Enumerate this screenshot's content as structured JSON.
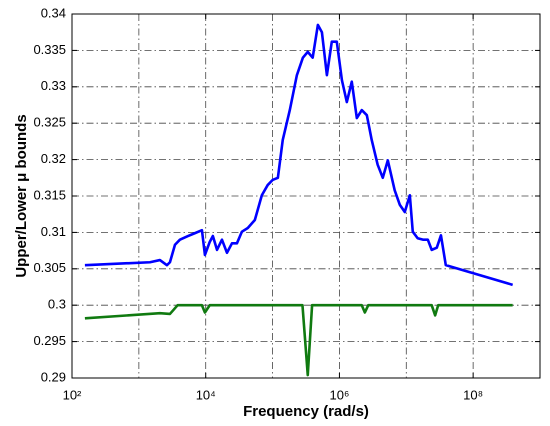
{
  "chart_data": {
    "type": "line",
    "xlabel": "Frequency (rad/s)",
    "ylabel": "Upper/Lower μ bounds",
    "xscale": "log",
    "xlim": [
      100,
      1000000000
    ],
    "xticks": [
      {
        "value": 100,
        "label": "10²"
      },
      {
        "value": 10000,
        "label": "10⁴"
      },
      {
        "value": 1000000,
        "label": "10⁶"
      },
      {
        "value": 100000000,
        "label": "10⁸"
      }
    ],
    "ylim": [
      0.29,
      0.34
    ],
    "yticks": [
      0.29,
      0.295,
      0.3,
      0.305,
      0.31,
      0.315,
      0.32,
      0.325,
      0.33,
      0.335,
      0.34
    ],
    "grid": true,
    "series": [
      {
        "color": "#0000ff",
        "x": [
          156,
          1466,
          2065,
          2630,
          2917,
          3470,
          4110,
          5420,
          6920,
          8780,
          9730,
          11500,
          12800,
          14760,
          17500,
          20800,
          24700,
          29300,
          34800,
          42600,
          54300,
          69100,
          84500,
          100000,
          120000,
          142000,
          181000,
          231000,
          284000,
          336000,
          398000,
          476000,
          547000,
          649000,
          769000,
          913000,
          1090000,
          1290000,
          1530000,
          1820000,
          2160000,
          2570000,
          3040000,
          3730000,
          4450000,
          5290000,
          6700000,
          7990000,
          9490000,
          11300000,
          12500000,
          14800000,
          17700000,
          21000000,
          24000000,
          28600000,
          33000000,
          39000000,
          390000000
        ],
        "values": [
          0.3055,
          0.3059,
          0.3062,
          0.3055,
          0.3059,
          0.3083,
          0.309,
          0.3095,
          0.3099,
          0.3103,
          0.3069,
          0.3087,
          0.3095,
          0.3076,
          0.309,
          0.3072,
          0.3085,
          0.3085,
          0.3101,
          0.3106,
          0.3117,
          0.3151,
          0.3165,
          0.3172,
          0.3175,
          0.3227,
          0.3268,
          0.3316,
          0.334,
          0.3348,
          0.334,
          0.3385,
          0.3375,
          0.3316,
          0.3362,
          0.3362,
          0.3309,
          0.3279,
          0.3307,
          0.3257,
          0.3268,
          0.3261,
          0.3227,
          0.3193,
          0.3175,
          0.3199,
          0.3158,
          0.3138,
          0.3128,
          0.3151,
          0.3101,
          0.3092,
          0.309,
          0.309,
          0.3076,
          0.3079,
          0.3096,
          0.3055,
          0.3028
        ]
      },
      {
        "color": "#107a10",
        "x": [
          156,
          2065,
          2917,
          3800,
          8780,
          9730,
          11500,
          280000,
          336000,
          390000,
          2160000,
          2400000,
          2700000,
          24000000,
          27000000,
          30000000,
          390000000
        ],
        "values": [
          0.2982,
          0.2989,
          0.2988,
          0.3,
          0.3,
          0.299,
          0.3,
          0.3,
          0.2904,
          0.3,
          0.3,
          0.299,
          0.3,
          0.3,
          0.2986,
          0.3,
          0.3
        ]
      }
    ]
  }
}
